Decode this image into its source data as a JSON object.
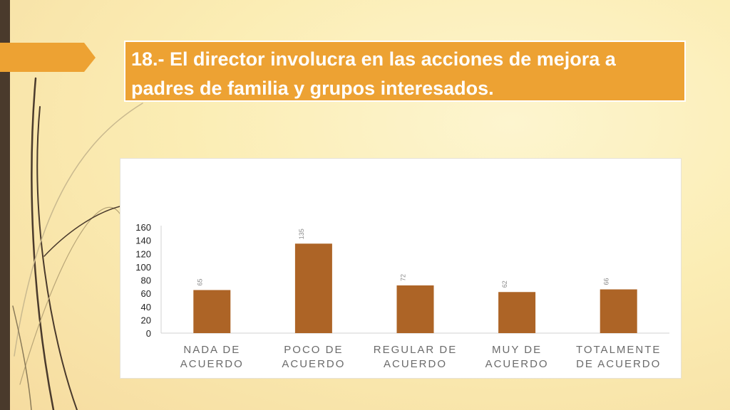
{
  "slide": {
    "title": "18.- El director involucra en las acciones de mejora a padres de familia y grupos interesados."
  },
  "colors": {
    "accent": "#eda233",
    "bar": "#ad6426",
    "sidebar": "#4a3a2c"
  },
  "chart_data": {
    "type": "bar",
    "categories": [
      [
        "NADA DE",
        "ACUERDO"
      ],
      [
        "POCO DE",
        "ACUERDO"
      ],
      [
        "REGULAR DE",
        "ACUERDO"
      ],
      [
        "MUY DE",
        "ACUERDO"
      ],
      [
        "TOTALMENTE",
        "DE ACUERDO"
      ]
    ],
    "values": [
      65,
      135,
      72,
      62,
      66
    ],
    "y_ticks": [
      0,
      20,
      40,
      60,
      80,
      100,
      120,
      140,
      160
    ],
    "ylim": [
      0,
      160
    ],
    "grid": false,
    "legend": "none",
    "data_labels": true
  }
}
